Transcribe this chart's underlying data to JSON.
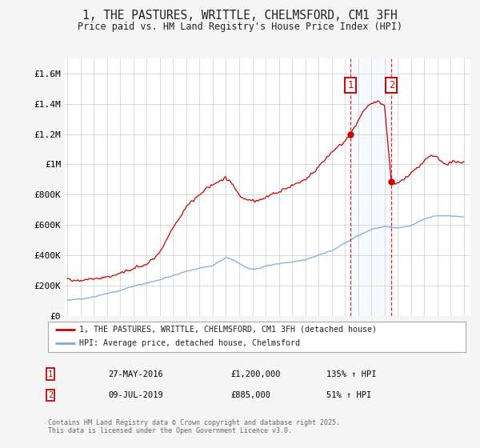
{
  "title": "1, THE PASTURES, WRITTLE, CHELMSFORD, CM1 3FH",
  "subtitle": "Price paid vs. HM Land Registry's House Price Index (HPI)",
  "ylabel_ticks": [
    0,
    200000,
    400000,
    600000,
    800000,
    1000000,
    1200000,
    1400000,
    1600000
  ],
  "ylabel_labels": [
    "£0",
    "£200K",
    "£400K",
    "£600K",
    "£800K",
    "£1M",
    "£1.2M",
    "£1.4M",
    "£1.6M"
  ],
  "ylim": [
    0,
    1700000
  ],
  "xlim_start": 1994.8,
  "xlim_end": 2025.5,
  "red_line_color": "#cc0000",
  "blue_line_color": "#7aaddc",
  "marker1_x": 2016.41,
  "marker1_y": 1200000,
  "marker1_date": "27-MAY-2016",
  "marker1_price": "£1,200,000",
  "marker1_label": "135% ↑ HPI",
  "marker2_x": 2019.52,
  "marker2_y": 885000,
  "marker2_date": "09-JUL-2019",
  "marker2_price": "£885,000",
  "marker2_label": "51% ↑ HPI",
  "legend_red": "1, THE PASTURES, WRITTLE, CHELMSFORD, CM1 3FH (detached house)",
  "legend_blue": "HPI: Average price, detached house, Chelmsford",
  "footer": "Contains HM Land Registry data © Crown copyright and database right 2025.\nThis data is licensed under the Open Government Licence v3.0.",
  "background_color": "#f5f5f5",
  "plot_bg_color": "#ffffff",
  "red_key_x": [
    1995,
    1996,
    1997,
    1998,
    1999,
    2000,
    2001,
    2002,
    2003,
    2004,
    2005,
    2006,
    2007,
    2007.5,
    2008,
    2008.5,
    2009,
    2009.5,
    2010,
    2011,
    2012,
    2013,
    2014,
    2015,
    2016.0,
    2016.41,
    2017.0,
    2017.5,
    2018.0,
    2018.5,
    2019.0,
    2019.52,
    2020.0,
    2020.5,
    2021.0,
    2021.5,
    2022.0,
    2022.5,
    2023.0,
    2023.5,
    2024.0,
    2024.5,
    2025.0
  ],
  "red_key_y": [
    240000,
    235000,
    245000,
    255000,
    280000,
    310000,
    340000,
    420000,
    580000,
    720000,
    800000,
    870000,
    910000,
    870000,
    800000,
    770000,
    760000,
    760000,
    780000,
    820000,
    860000,
    900000,
    980000,
    1080000,
    1150000,
    1200000,
    1280000,
    1360000,
    1400000,
    1420000,
    1380000,
    885000,
    870000,
    900000,
    940000,
    980000,
    1020000,
    1060000,
    1040000,
    1000000,
    1010000,
    1020000,
    1010000
  ],
  "blue_key_x": [
    1995,
    1996,
    1997,
    1998,
    1999,
    2000,
    2001,
    2002,
    2003,
    2004,
    2005,
    2006,
    2007,
    2007.5,
    2008,
    2008.5,
    2009,
    2009.5,
    2010,
    2011,
    2012,
    2013,
    2014,
    2015,
    2016,
    2017,
    2018,
    2019,
    2020,
    2021,
    2022,
    2023,
    2024,
    2025
  ],
  "blue_key_y": [
    105000,
    110000,
    125000,
    148000,
    168000,
    195000,
    215000,
    238000,
    265000,
    295000,
    315000,
    330000,
    385000,
    370000,
    345000,
    320000,
    305000,
    315000,
    330000,
    345000,
    355000,
    370000,
    400000,
    430000,
    480000,
    530000,
    570000,
    590000,
    580000,
    595000,
    640000,
    660000,
    660000,
    655000
  ]
}
